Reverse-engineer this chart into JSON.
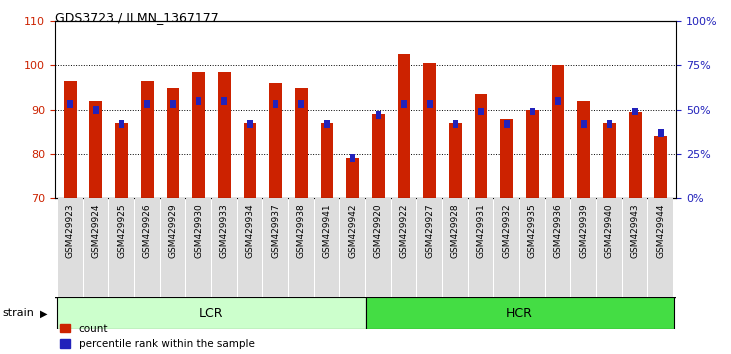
{
  "title": "GDS3723 / ILMN_1367177",
  "samples": [
    "GSM429923",
    "GSM429924",
    "GSM429925",
    "GSM429926",
    "GSM429929",
    "GSM429930",
    "GSM429933",
    "GSM429934",
    "GSM429937",
    "GSM429938",
    "GSM429941",
    "GSM429942",
    "GSM429920",
    "GSM429922",
    "GSM429927",
    "GSM429928",
    "GSM429931",
    "GSM429932",
    "GSM429935",
    "GSM429936",
    "GSM429939",
    "GSM429940",
    "GSM429943",
    "GSM429944"
  ],
  "red_values": [
    96.5,
    92.0,
    87.0,
    96.5,
    95.0,
    98.5,
    98.5,
    87.0,
    96.0,
    95.0,
    87.0,
    79.0,
    89.0,
    102.5,
    100.5,
    87.0,
    93.5,
    88.0,
    90.0,
    100.0,
    92.0,
    87.0,
    89.5,
    84.0
  ],
  "blue_pct": [
    53,
    50,
    42,
    53,
    53,
    55,
    55,
    42,
    53,
    53,
    42,
    23,
    47,
    53,
    53,
    42,
    49,
    42,
    49,
    55,
    42,
    42,
    49,
    37
  ],
  "lcr_count": 12,
  "hcr_count": 12,
  "ylim_left": [
    70,
    110
  ],
  "ylim_right": [
    0,
    100
  ],
  "yticks_left": [
    70,
    80,
    90,
    100,
    110
  ],
  "yticks_right": [
    0,
    25,
    50,
    75,
    100
  ],
  "ytick_labels_right": [
    "0%",
    "25%",
    "50%",
    "75%",
    "100%"
  ],
  "red_color": "#cc2200",
  "blue_color": "#2222bb",
  "lcr_color": "#ccffcc",
  "hcr_color": "#44dd44",
  "tick_bg_color": "#dddddd",
  "bar_width": 0.5,
  "blue_bar_width": 0.22,
  "blue_bar_height": 1.8
}
